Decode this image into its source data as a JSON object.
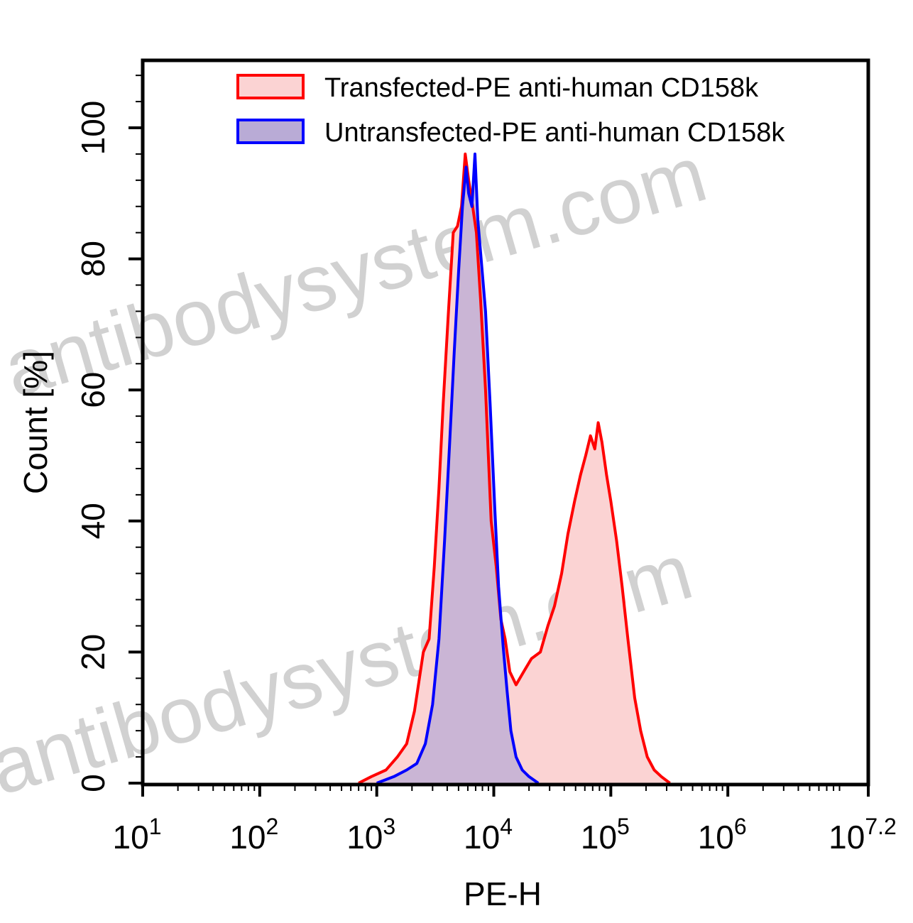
{
  "chart_data": {
    "type": "area",
    "xlabel": "PE-H",
    "ylabel": "Count [%]",
    "x_scale": "log10",
    "xlim": [
      10,
      15848932
    ],
    "ylim": [
      0,
      100
    ],
    "x_tick_labels": [
      {
        "base": "10",
        "exp": "1"
      },
      {
        "base": "10",
        "exp": "2"
      },
      {
        "base": "10",
        "exp": "3"
      },
      {
        "base": "10",
        "exp": "4"
      },
      {
        "base": "10",
        "exp": "5"
      },
      {
        "base": "10",
        "exp": "6"
      },
      {
        "base": "10",
        "exp": "7.2"
      }
    ],
    "y_ticks": [
      0,
      20,
      40,
      60,
      80,
      100
    ],
    "legend_position": "top",
    "watermark": "antibodysystem.com",
    "series": [
      {
        "name": "Transfected-PE anti-human CD158k",
        "color": "#ff0000",
        "fill": "#fbd3d3",
        "points": [
          [
            700,
            0
          ],
          [
            900,
            1
          ],
          [
            1200,
            2
          ],
          [
            1500,
            4
          ],
          [
            1800,
            6
          ],
          [
            2100,
            11
          ],
          [
            2500,
            20
          ],
          [
            2800,
            22
          ],
          [
            3100,
            33
          ],
          [
            3400,
            45
          ],
          [
            3700,
            58
          ],
          [
            4100,
            72
          ],
          [
            4500,
            84
          ],
          [
            4900,
            85
          ],
          [
            5300,
            88
          ],
          [
            5700,
            96
          ],
          [
            6100,
            92
          ],
          [
            6600,
            88
          ],
          [
            7100,
            84
          ],
          [
            7700,
            74
          ],
          [
            8500,
            60
          ],
          [
            9500,
            40
          ],
          [
            10500,
            33
          ],
          [
            11500,
            25
          ],
          [
            12500,
            22
          ],
          [
            13700,
            17
          ],
          [
            15500,
            15
          ],
          [
            18000,
            17
          ],
          [
            21000,
            19
          ],
          [
            25000,
            20
          ],
          [
            29000,
            24
          ],
          [
            33000,
            27
          ],
          [
            38000,
            32
          ],
          [
            43000,
            38
          ],
          [
            49000,
            43
          ],
          [
            55000,
            47
          ],
          [
            61000,
            50
          ],
          [
            67000,
            53
          ],
          [
            73000,
            51
          ],
          [
            78000,
            55
          ],
          [
            84000,
            52
          ],
          [
            92000,
            47
          ],
          [
            100000,
            43
          ],
          [
            112000,
            37
          ],
          [
            125000,
            30
          ],
          [
            140000,
            22
          ],
          [
            160000,
            13
          ],
          [
            180000,
            8
          ],
          [
            205000,
            4
          ],
          [
            235000,
            2
          ],
          [
            270000,
            1
          ],
          [
            320000,
            0
          ]
        ]
      },
      {
        "name": "Untransfected-PE anti-human CD158k",
        "color": "#0000ff",
        "fill": "#b9abd6",
        "points": [
          [
            1000,
            0
          ],
          [
            1400,
            1
          ],
          [
            1800,
            2
          ],
          [
            2200,
            3
          ],
          [
            2600,
            6
          ],
          [
            3000,
            12
          ],
          [
            3400,
            22
          ],
          [
            3800,
            37
          ],
          [
            4200,
            52
          ],
          [
            4600,
            66
          ],
          [
            5000,
            78
          ],
          [
            5400,
            88
          ],
          [
            5800,
            94
          ],
          [
            6100,
            90
          ],
          [
            6500,
            88
          ],
          [
            6900,
            96
          ],
          [
            7300,
            86
          ],
          [
            7800,
            80
          ],
          [
            8500,
            72
          ],
          [
            9300,
            58
          ],
          [
            10200,
            42
          ],
          [
            11000,
            30
          ],
          [
            12000,
            21
          ],
          [
            13000,
            14
          ],
          [
            14000,
            8
          ],
          [
            15500,
            4
          ],
          [
            17500,
            2
          ],
          [
            20000,
            1
          ],
          [
            24000,
            0
          ]
        ]
      }
    ]
  }
}
